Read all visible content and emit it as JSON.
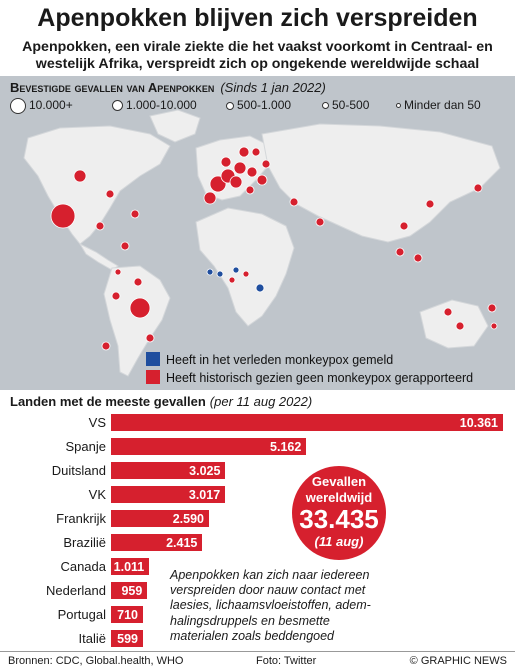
{
  "title": "Apenpokken blijven zich verspreiden",
  "subtitle_lines": [
    "Apenpokken, een virale ziekte die het vaakst voorkomt in Centraal- en",
    "westelijk Afrika, verspreidt zich op ongekende wereldwijde schaal"
  ],
  "map": {
    "heading": "Bevestigde gevallen van Apenpokken",
    "heading_note": "(Sinds 1 jan 2022)",
    "legend": [
      "10.000+",
      "1.000-10.000",
      "500-1.000",
      "50-500",
      "Minder dan 50"
    ],
    "key_blue": "Heeft in het verleden monkeypox gemeld",
    "key_red": "Heeft historisch gezien geen monkeypox gerapporteerd",
    "colors": {
      "red": "#d6202e",
      "blue": "#1f4e9e",
      "land": "#eeeeee",
      "sea": "#bfc5cb"
    }
  },
  "bars": {
    "heading": "Landen met de meeste gevallen",
    "heading_note": "(per 11 aug 2022)"
  },
  "callout": {
    "line1": "Gevallen",
    "line2": "wereldwijd",
    "value": "33.435",
    "date": "(11 aug)"
  },
  "info_lines": [
    "Apenpokken kan zich naar iedereen",
    "verspreiden door nauw contact met",
    "laesies, lichaamsvloeistoffen, adem-",
    "halingsdruppels en besmette",
    "materialen zoals beddengoed"
  ],
  "footer": {
    "sources": "Bronnen: CDC, Global.health, WHO",
    "photo": "Foto: Twitter",
    "credit": "© GRAPHIC NEWS"
  },
  "chart_data": {
    "type": "bar",
    "orientation": "horizontal",
    "title": "Landen met de meeste gevallen",
    "categories": [
      "VS",
      "Spanje",
      "Duitsland",
      "VK",
      "Frankrijk",
      "Brazilië",
      "Canada",
      "Nederland",
      "Portugal",
      "Italië"
    ],
    "values": [
      10361,
      5162,
      3025,
      3017,
      2590,
      2415,
      1011,
      959,
      710,
      599
    ],
    "labels": [
      "10.361",
      "5.162",
      "3.025",
      "3.017",
      "2.590",
      "2.415",
      "1.011",
      "959",
      "710",
      "599"
    ],
    "color": "#d6202e"
  }
}
